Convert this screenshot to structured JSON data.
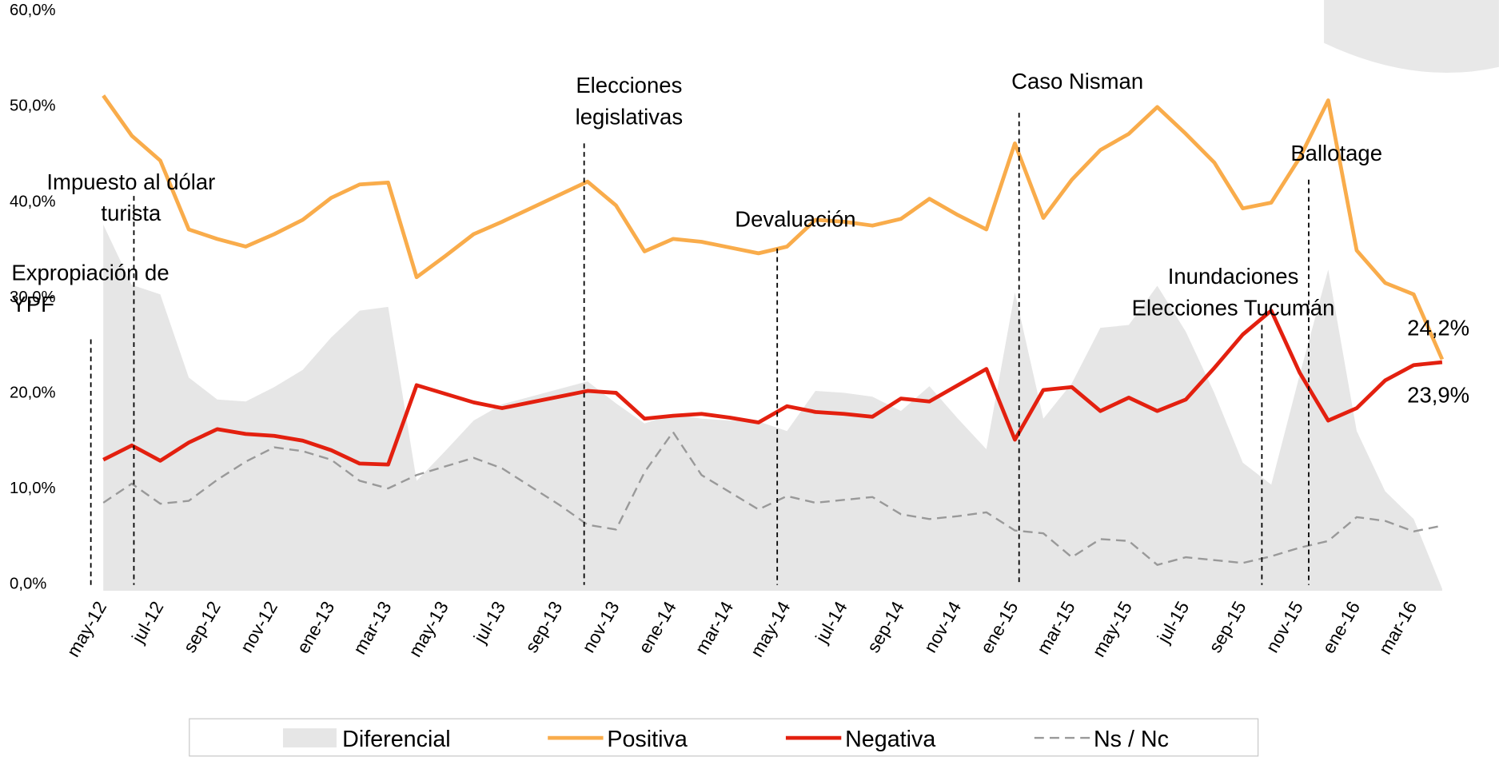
{
  "chart_data": {
    "type": "line",
    "categories": [
      "may-12",
      null,
      "jul-12",
      null,
      "sep-12",
      null,
      "nov-12",
      null,
      "ene-13",
      null,
      "mar-13",
      null,
      "may-13",
      null,
      "jul-13",
      null,
      "sep-13",
      null,
      "nov-13",
      null,
      "ene-14",
      null,
      "mar-14",
      null,
      "may-14",
      null,
      "jul-14",
      null,
      "sep-14",
      null,
      "nov-14",
      null,
      "ene-15",
      null,
      "mar-15",
      null,
      "may-15",
      null,
      "jul-15",
      null,
      "sep-15",
      null,
      "nov-15",
      null,
      "ene-16",
      null,
      "mar-16",
      null
    ],
    "ylim": [
      0,
      60
    ],
    "yticks": [
      {
        "value": 0,
        "label": "0,0%"
      },
      {
        "value": 10,
        "label": "10,0%"
      },
      {
        "value": 20,
        "label": "20,0%"
      },
      {
        "value": 30,
        "label": "30,0%"
      },
      {
        "value": 40,
        "label": "40,0%"
      },
      {
        "value": 50,
        "label": "50,0%"
      },
      {
        "value": 60,
        "label": "60,0%"
      }
    ],
    "series": [
      {
        "name": "Diferencial",
        "type": "area",
        "color": "#e6e6e6",
        "values": [
          38.3,
          32,
          31,
          22.3,
          20,
          19.8,
          21.3,
          23.1,
          26.5,
          29.3,
          29.7,
          11.5,
          14.6,
          17.8,
          19.5,
          20.3,
          21.1,
          21.9,
          19.6,
          17.5,
          18.5,
          18,
          17.8,
          17.7,
          16.7,
          20.9,
          20.7,
          20.3,
          18.8,
          21.4,
          18,
          14.8,
          31.2,
          18,
          21.7,
          27.5,
          27.8,
          31.9,
          27.1,
          20.7,
          13.4,
          11.1,
          22.6,
          33.6,
          16.7,
          10.4,
          7.5,
          0.2
        ]
      },
      {
        "name": "Positiva",
        "type": "line",
        "color": "#f9ac4b",
        "values": [
          51.8,
          47.6,
          45,
          37.8,
          36.8,
          36,
          37.3,
          38.8,
          41.1,
          42.5,
          42.7,
          32.8,
          35,
          37.3,
          38.6,
          40,
          41.4,
          42.8,
          40.3,
          35.5,
          36.8,
          36.5,
          35.9,
          35.3,
          36,
          38.8,
          38.6,
          38.2,
          38.9,
          41,
          39.3,
          37.8,
          46.8,
          39,
          43,
          46.1,
          47.8,
          50.6,
          47.8,
          44.8,
          40,
          40.6,
          45.3,
          51.3,
          35.6,
          32.2,
          31,
          24.2
        ],
        "value_labels": [
          null,
          null,
          null,
          null,
          null,
          null,
          null,
          null,
          null,
          null,
          null,
          null,
          null,
          null,
          null,
          null,
          null,
          null,
          null,
          null,
          null,
          null,
          null,
          null,
          null,
          null,
          null,
          null,
          null,
          null,
          null,
          null,
          null,
          null,
          null,
          null,
          null,
          null,
          null,
          null,
          null,
          null,
          null,
          null,
          null,
          null,
          null,
          "24,2%"
        ]
      },
      {
        "name": "Negativa",
        "type": "line",
        "color": "#e3200f",
        "values": [
          13.7,
          15.2,
          13.6,
          15.5,
          16.9,
          16.4,
          16.2,
          15.7,
          14.7,
          13.3,
          13.2,
          21.5,
          20.6,
          19.7,
          19.1,
          19.7,
          20.3,
          20.9,
          20.7,
          18,
          18.3,
          18.5,
          18.1,
          17.6,
          19.3,
          18.7,
          18.5,
          18.2,
          20.1,
          19.8,
          21.5,
          23.2,
          15.8,
          21,
          21.3,
          18.8,
          20.2,
          18.8,
          20,
          23.3,
          26.8,
          29.3,
          22.8,
          17.8,
          19.1,
          22,
          23.6,
          23.9
        ],
        "value_labels": [
          null,
          null,
          null,
          null,
          null,
          null,
          null,
          null,
          null,
          null,
          null,
          null,
          null,
          null,
          null,
          null,
          null,
          null,
          null,
          null,
          null,
          null,
          null,
          null,
          null,
          null,
          null,
          null,
          null,
          null,
          null,
          null,
          null,
          null,
          null,
          null,
          null,
          null,
          null,
          null,
          null,
          null,
          null,
          null,
          null,
          null,
          null,
          "23,9%"
        ]
      },
      {
        "name": "Ns / Nc",
        "type": "dashed",
        "color": "#999999",
        "values": [
          9.2,
          11.2,
          9.1,
          9.4,
          11.6,
          13.5,
          15,
          14.6,
          13.7,
          11.5,
          10.7,
          12.1,
          13,
          13.9,
          12.8,
          10.9,
          9,
          6.9,
          6.4,
          12.4,
          16.6,
          12.1,
          10.3,
          8.5,
          9.9,
          9.2,
          9.5,
          9.8,
          8,
          7.5,
          7.8,
          8.2,
          6.3,
          6,
          3.5,
          5.4,
          5.2,
          2.7,
          3.5,
          3.2,
          2.9,
          3.6,
          4.5,
          5.2,
          7.7,
          7.3,
          6.2,
          6.8
        ]
      }
    ],
    "annotations": [
      {
        "lines": [
          "Expropiación de",
          "YPF"
        ]
      },
      {
        "lines": [
          "Impuesto al dólar",
          "turista"
        ]
      },
      {
        "lines": [
          "Elecciones",
          "legislativas"
        ]
      },
      {
        "lines": [
          "Devaluación"
        ]
      },
      {
        "lines": [
          "Caso Nisman"
        ]
      },
      {
        "lines": [
          "Inundaciones",
          "Elecciones Tucumán"
        ]
      },
      {
        "lines": [
          "Ballotage"
        ]
      }
    ]
  }
}
